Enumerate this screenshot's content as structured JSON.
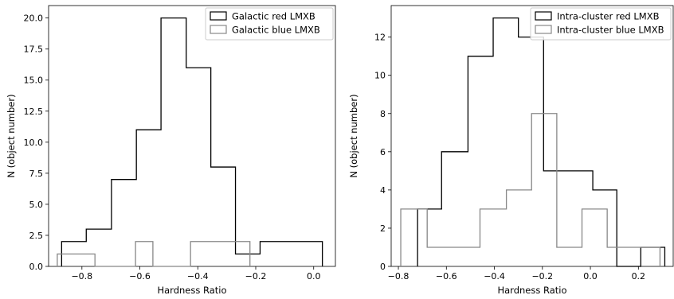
{
  "chart_data": [
    {
      "type": "histogram",
      "xlabel": "Hardness Ratio",
      "ylabel": "N (object number)",
      "xlim": [
        -0.915,
        0.075
      ],
      "ylim": [
        0,
        21.0
      ],
      "xticks": [
        -0.8,
        -0.6,
        -0.4,
        -0.2,
        0.0
      ],
      "xtick_labels": [
        "−0.8",
        "−0.6",
        "−0.4",
        "−0.2",
        "0.0"
      ],
      "yticks": [
        0.0,
        2.5,
        5.0,
        7.5,
        10.0,
        12.5,
        15.0,
        17.5,
        20.0
      ],
      "ytick_labels": [
        "0.0",
        "2.5",
        "5.0",
        "7.5",
        "10.0",
        "12.5",
        "15.0",
        "17.5",
        "20.0"
      ],
      "legend_position": "top-right",
      "series": [
        {
          "name": "Galactic red LMXB",
          "color": "#000000",
          "edges": [
            -0.87,
            -0.785,
            -0.698,
            -0.612,
            -0.527,
            -0.44,
            -0.355,
            -0.27,
            -0.185,
            -0.1,
            0.03
          ],
          "counts": [
            2,
            3,
            7,
            11,
            20,
            16,
            8,
            1,
            2,
            2
          ]
        },
        {
          "name": "Galactic blue LMXB",
          "color": "#888888",
          "edges": [
            -0.885,
            -0.755,
            -0.615,
            -0.555,
            -0.425,
            -0.22
          ],
          "counts": [
            1,
            0,
            2,
            0,
            2
          ]
        }
      ]
    },
    {
      "type": "histogram",
      "xlabel": "Hardness Ratio",
      "ylabel": "N (object number)",
      "xlim": [
        -0.83,
        0.345
      ],
      "ylim": [
        0,
        13.65
      ],
      "xticks": [
        -0.8,
        -0.6,
        -0.4,
        -0.2,
        0.0,
        0.2
      ],
      "xtick_labels": [
        "−0.8",
        "−0.6",
        "−0.4",
        "−0.2",
        "0.0",
        "0.2"
      ],
      "yticks": [
        0,
        2,
        4,
        6,
        8,
        10,
        12
      ],
      "ytick_labels": [
        "0",
        "2",
        "4",
        "6",
        "8",
        "10",
        "12"
      ],
      "legend_position": "top-right",
      "series": [
        {
          "name": "Intra-cluster red LMXB",
          "color": "#000000",
          "edges": [
            -0.72,
            -0.62,
            -0.51,
            -0.405,
            -0.3,
            -0.195,
            -0.09,
            0.01,
            0.11,
            0.21,
            0.31
          ],
          "counts": [
            3,
            6,
            11,
            13,
            12,
            5,
            5,
            4,
            0,
            1
          ]
        },
        {
          "name": "Intra-cluster blue LMXB",
          "color": "#888888",
          "edges": [
            -0.79,
            -0.68,
            -0.46,
            -0.35,
            -0.245,
            -0.14,
            -0.035,
            0.07,
            0.29
          ],
          "counts": [
            3,
            1,
            3,
            4,
            8,
            1,
            3,
            1
          ]
        }
      ]
    }
  ]
}
